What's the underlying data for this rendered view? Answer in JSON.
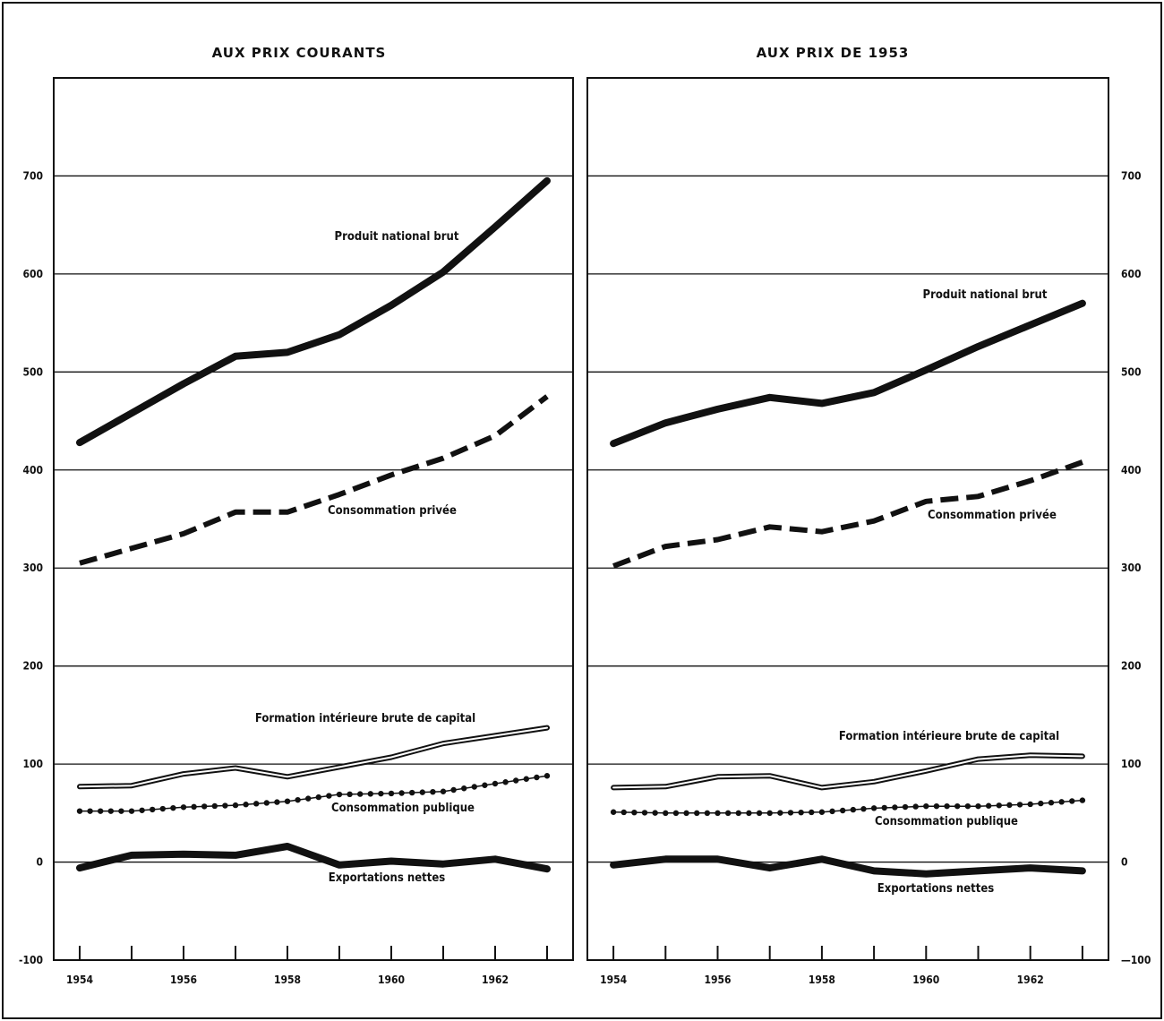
{
  "chart_data": [
    {
      "type": "line",
      "title": "AUX PRIX COURANTS",
      "x": [
        1954,
        1955,
        1956,
        1957,
        1958,
        1959,
        1960,
        1961,
        1962,
        1963
      ],
      "x_tick_labels": [
        "1954",
        "1956",
        "1958",
        "1960",
        "1962"
      ],
      "xlim": [
        1953.5,
        1963.5
      ],
      "ylim": [
        -100,
        800
      ],
      "y_ticks": [
        -100,
        0,
        100,
        200,
        300,
        400,
        500,
        600,
        700
      ],
      "y_tick_labels": [
        "-100",
        "0",
        "100",
        "200",
        "300",
        "400",
        "500",
        "600",
        "700"
      ],
      "grid": true,
      "series": [
        {
          "name": "Produit national brut",
          "style": "thick-solid",
          "values": [
            428,
            458,
            488,
            516,
            520,
            538,
            568,
            602,
            648,
            695
          ]
        },
        {
          "name": "Consommation privée",
          "style": "dashed",
          "values": [
            305,
            320,
            335,
            357,
            357,
            375,
            395,
            412,
            435,
            475
          ]
        },
        {
          "name": "Formation intérieure brute de capital",
          "style": "double",
          "values": [
            77,
            78,
            90,
            96,
            87,
            97,
            107,
            121,
            129,
            137
          ]
        },
        {
          "name": "Consommation publique",
          "style": "dotted",
          "values": [
            52,
            52,
            56,
            58,
            62,
            69,
            70,
            72,
            80,
            88
          ]
        },
        {
          "name": "Exportations nettes",
          "style": "thick-solid",
          "values": [
            -6,
            7,
            8,
            7,
            16,
            -3,
            1,
            -2,
            3,
            -7
          ]
        }
      ]
    },
    {
      "type": "line",
      "title": "AUX PRIX DE 1953",
      "x": [
        1954,
        1955,
        1956,
        1957,
        1958,
        1959,
        1960,
        1961,
        1962,
        1963
      ],
      "x_tick_labels": [
        "1954",
        "1956",
        "1958",
        "1960",
        "1962"
      ],
      "xlim": [
        1953.5,
        1963.5
      ],
      "ylim": [
        -100,
        800
      ],
      "y_ticks": [
        -100,
        0,
        100,
        200,
        300,
        400,
        500,
        600,
        700
      ],
      "y_tick_labels": [
        "—100",
        "0",
        "100",
        "200",
        "300",
        "400",
        "500",
        "600",
        "700"
      ],
      "grid": true,
      "series": [
        {
          "name": "Produit national brut",
          "style": "thick-solid",
          "values": [
            427,
            448,
            462,
            474,
            468,
            479,
            502,
            526,
            548,
            570
          ]
        },
        {
          "name": "Consommation privée",
          "style": "dashed",
          "values": [
            302,
            322,
            329,
            342,
            337,
            348,
            368,
            373,
            389,
            408
          ]
        },
        {
          "name": "Formation intérieure brute de capital",
          "style": "double",
          "values": [
            76,
            77,
            87,
            88,
            76,
            82,
            93,
            105,
            109,
            108
          ]
        },
        {
          "name": "Consommation publique",
          "style": "dotted",
          "values": [
            51,
            50,
            50,
            50,
            51,
            55,
            57,
            57,
            59,
            63
          ]
        },
        {
          "name": "Exportations nettes",
          "style": "thick-solid",
          "values": [
            -3,
            3,
            3,
            -6,
            3,
            -9,
            -12,
            -9,
            -6,
            -9
          ]
        }
      ]
    }
  ]
}
